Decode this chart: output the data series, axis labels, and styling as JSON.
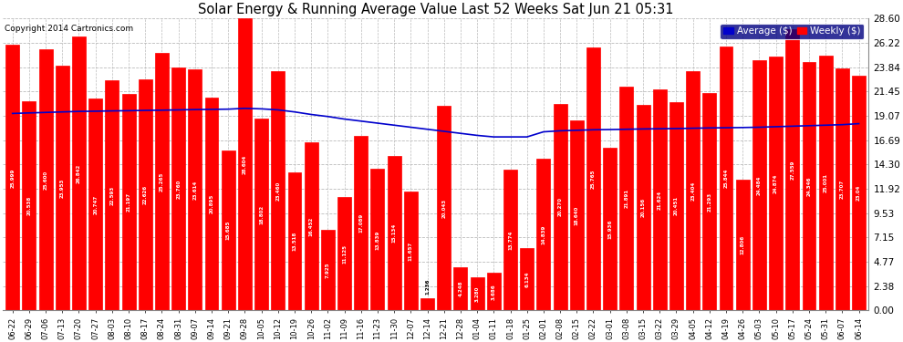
{
  "title": "Solar Energy & Running Average Value Last 52 Weeks Sat Jun 21 05:31",
  "copyright": "Copyright 2014 Cartronics.com",
  "ytick_labels": [
    "0.00",
    "2.38",
    "4.77",
    "7.15",
    "9.53",
    "11.92",
    "14.30",
    "16.69",
    "19.07",
    "21.45",
    "23.84",
    "26.22",
    "28.60"
  ],
  "ytick_vals": [
    0.0,
    2.38,
    4.77,
    7.15,
    9.53,
    11.92,
    14.3,
    16.69,
    19.07,
    21.45,
    23.84,
    26.22,
    28.6
  ],
  "ylim": [
    0.0,
    28.6
  ],
  "bar_color": "#ff0000",
  "avg_line_color": "#0000cc",
  "grid_color": "#bbbbbb",
  "bg_color": "#ffffff",
  "legend_avg_color": "#0000cc",
  "legend_weekly_color": "#ff0000",
  "legend_bg": "#000080",
  "categories": [
    "06-22",
    "06-29",
    "07-06",
    "07-13",
    "07-20",
    "07-27",
    "08-03",
    "08-10",
    "08-17",
    "08-24",
    "08-31",
    "09-07",
    "09-14",
    "09-21",
    "09-28",
    "10-05",
    "10-12",
    "10-19",
    "10-26",
    "11-02",
    "11-09",
    "11-16",
    "11-23",
    "11-30",
    "12-07",
    "12-14",
    "12-21",
    "12-28",
    "01-04",
    "01-11",
    "01-18",
    "01-25",
    "02-01",
    "02-08",
    "02-15",
    "02-22",
    "03-01",
    "03-08",
    "03-15",
    "03-22",
    "03-29",
    "04-05",
    "04-12",
    "04-19",
    "04-26",
    "05-03",
    "05-10",
    "05-17",
    "05-24",
    "05-31",
    "06-07",
    "06-14"
  ],
  "bar_values": [
    25.999,
    20.538,
    25.6,
    23.953,
    26.842,
    20.747,
    22.593,
    21.197,
    22.626,
    25.265,
    23.76,
    23.614,
    20.895,
    15.685,
    28.604,
    18.802,
    23.46,
    13.518,
    16.452,
    7.925,
    11.125,
    17.089,
    13.839,
    15.134,
    11.657,
    1.236,
    20.043,
    4.248,
    3.28,
    3.686,
    13.774,
    6.134,
    14.839,
    20.27,
    18.64,
    25.765,
    15.936,
    21.891,
    20.156,
    21.624,
    20.451,
    23.404,
    21.293,
    25.844,
    12.806,
    24.484,
    24.874,
    27.559,
    24.346,
    25.001,
    23.707,
    23.04
  ],
  "bar_labels": [
    "25.999",
    "20.538",
    "25.600",
    "23.953",
    "26.842",
    "20.747",
    "22.593",
    "21.197",
    "22.626",
    "25.265",
    "23.760",
    "23.614",
    "20.895",
    "15.685",
    "28.604",
    "18.802",
    "23.460",
    "13.518",
    "16.452",
    "7.925",
    "11.125",
    "17.089",
    "13.839",
    "15.134",
    "11.657",
    "1.236",
    "20.043",
    "4.248",
    "3.280",
    "3.686",
    "13.774",
    "6.134",
    "14.839",
    "20.270",
    "18.640",
    "25.765",
    "15.936",
    "21.891",
    "20.156",
    "21.624",
    "20.451",
    "23.404",
    "21.293",
    "25.844",
    "12.806",
    "24.484",
    "24.874",
    "27.559",
    "24.346",
    "25.001",
    "23.707",
    "23.04"
  ],
  "avg_values": [
    19.3,
    19.35,
    19.4,
    19.45,
    19.5,
    19.52,
    19.55,
    19.57,
    19.6,
    19.62,
    19.65,
    19.68,
    19.7,
    19.72,
    19.8,
    19.75,
    19.65,
    19.45,
    19.2,
    19.0,
    18.75,
    18.55,
    18.35,
    18.15,
    17.95,
    17.75,
    17.55,
    17.35,
    17.15,
    17.0,
    17.0,
    17.0,
    17.5,
    17.6,
    17.65,
    17.7,
    17.72,
    17.75,
    17.78,
    17.8,
    17.82,
    17.85,
    17.88,
    17.9,
    17.92,
    17.95,
    18.0,
    18.05,
    18.1,
    18.15,
    18.2,
    18.3
  ]
}
